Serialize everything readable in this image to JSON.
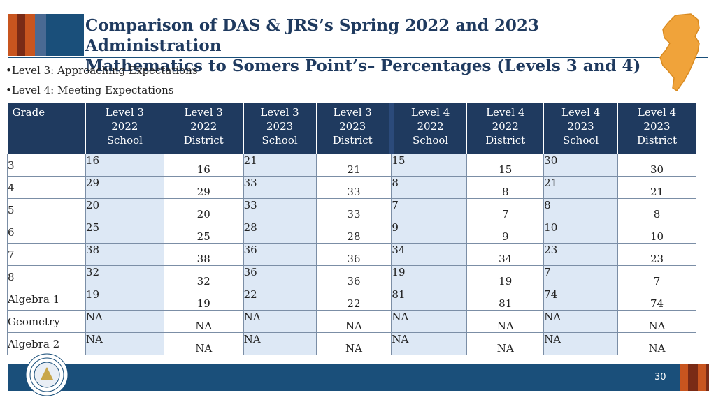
{
  "title": {
    "line1": "Comparison of DAS & JRS’s Spring 2022 and 2023 Administration",
    "line2": "Mathematics to Somers Point’s– Percentages (Levels 3 and 4)"
  },
  "bullets": [
    "Level 3: Approaching Expectations",
    "Level 4: Meeting Expectations"
  ],
  "table": {
    "headers": [
      [
        "Grade"
      ],
      [
        "Level 3",
        "2022",
        "School"
      ],
      [
        "Level 3",
        "2022",
        "District"
      ],
      [
        "Level 3",
        "2023",
        "School"
      ],
      [
        "Level 3",
        "2023",
        "District"
      ],
      [
        "Level 4",
        "2022",
        "School"
      ],
      [
        "Level 4",
        "2022",
        "District"
      ],
      [
        "Level 4",
        "2023",
        "School"
      ],
      [
        "Level 4",
        "2023",
        "District"
      ]
    ],
    "rows": [
      [
        "3",
        "16",
        "16",
        "21",
        "21",
        "15",
        "15",
        "30",
        "30"
      ],
      [
        "4",
        "29",
        "29",
        "33",
        "33",
        "8",
        "8",
        "21",
        "21"
      ],
      [
        "5",
        "20",
        "20",
        "33",
        "33",
        "7",
        "7",
        "8",
        "8"
      ],
      [
        "6",
        "25",
        "25",
        "28",
        "28",
        "9",
        "9",
        "10",
        "10"
      ],
      [
        "7",
        "38",
        "38",
        "36",
        "36",
        "34",
        "34",
        "23",
        "23"
      ],
      [
        "8",
        "32",
        "32",
        "36",
        "36",
        "19",
        "19",
        "7",
        "7"
      ],
      [
        "Algebra 1",
        "19",
        "19",
        "22",
        "22",
        "81",
        "81",
        "74",
        "74"
      ],
      [
        "Geometry",
        "NA",
        "NA",
        "NA",
        "NA",
        "NA",
        "NA",
        "NA",
        "NA"
      ],
      [
        "Algebra 2",
        "NA",
        "NA",
        "NA",
        "NA",
        "NA",
        "NA",
        "NA",
        "NA"
      ]
    ]
  },
  "footer": {
    "page_number": "30"
  },
  "icons": {
    "state_map": "new-jersey-map-icon",
    "seal": "department-of-education-seal"
  },
  "colors": {
    "navy": "#1f3a5f",
    "shade": "#dde8f5",
    "orange": "#f0a33a",
    "rust": "#c8551f"
  }
}
